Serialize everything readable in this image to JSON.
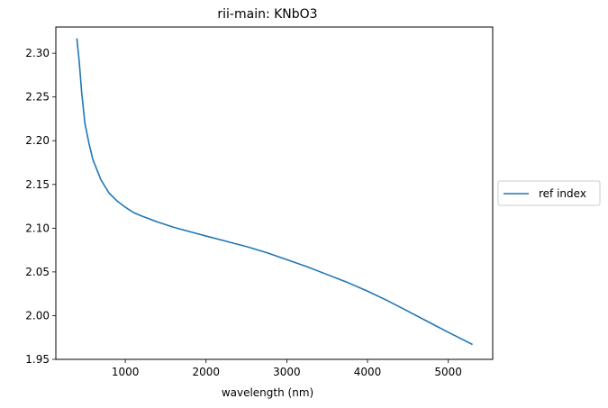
{
  "chart_data": {
    "type": "line",
    "title": "rii-main: KNbO3",
    "xlabel": "wavelength (nm)",
    "ylabel": "",
    "xlim": [
      140,
      5550
    ],
    "ylim": [
      1.95,
      2.33
    ],
    "xticks": [
      1000,
      2000,
      3000,
      4000,
      5000
    ],
    "yticks": [
      1.95,
      2.0,
      2.05,
      2.1,
      2.15,
      2.2,
      2.25,
      2.3
    ],
    "ytick_labels": [
      "1.95",
      "2.00",
      "2.05",
      "2.10",
      "2.15",
      "2.20",
      "2.25",
      "2.30"
    ],
    "grid": false,
    "legend_position": "outside-right",
    "series": [
      {
        "name": "ref index",
        "color": "#1f77b4",
        "x": [
          400,
          430,
          460,
          500,
          550,
          600,
          700,
          800,
          900,
          1000,
          1100,
          1200,
          1400,
          1600,
          1800,
          2000,
          2250,
          2500,
          2750,
          3000,
          3250,
          3500,
          3750,
          4000,
          4250,
          4500,
          4750,
          5000,
          5300
        ],
        "y": [
          2.317,
          2.29,
          2.255,
          2.22,
          2.197,
          2.178,
          2.155,
          2.14,
          2.131,
          2.124,
          2.118,
          2.114,
          2.107,
          2.101,
          2.096,
          2.091,
          2.085,
          2.079,
          2.072,
          2.064,
          2.056,
          2.047,
          2.038,
          2.028,
          2.017,
          2.005,
          1.993,
          1.981,
          1.967
        ]
      }
    ]
  }
}
